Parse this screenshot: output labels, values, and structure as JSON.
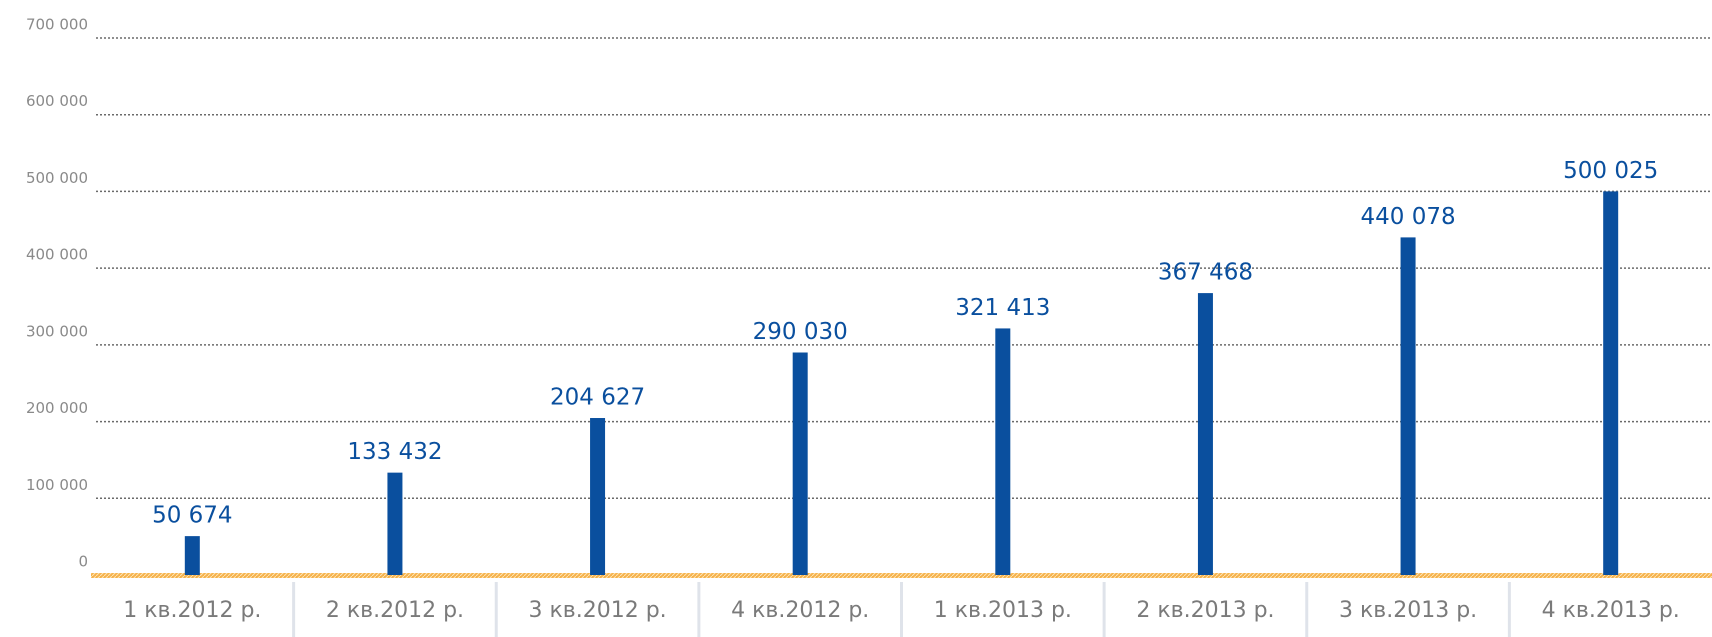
{
  "chart_data": {
    "type": "bar",
    "categories": [
      "1 кв.2012 р.",
      "2 кв.2012 р.",
      "3 кв.2012 р.",
      "4 кв.2012 р.",
      "1 кв.2013 р.",
      "2 кв.2013 р.",
      "3 кв.2013 р.",
      "4 кв.2013 р."
    ],
    "values": [
      50674,
      133432,
      204627,
      290030,
      321413,
      367468,
      440078,
      500025
    ],
    "value_labels": [
      "50 674",
      "133 432",
      "204 627",
      "290 030",
      "321 413",
      "367 468",
      "440 078",
      "500 025"
    ],
    "color": "#0a4f9e",
    "ylim": [
      0,
      700000
    ],
    "yticks": [
      0,
      {
        "value": 100000,
        "label": "100 000"
      },
      {
        "value": 200000,
        "label": "200 000"
      },
      {
        "value": 300000,
        "label": "300 000"
      },
      {
        "value": 400000,
        "label": "400 000"
      },
      {
        "value": 500000,
        "label": "500 000"
      },
      {
        "value": 600000,
        "label": "600 000"
      },
      {
        "value": 700000,
        "label": "700 000"
      }
    ],
    "grid": true
  }
}
